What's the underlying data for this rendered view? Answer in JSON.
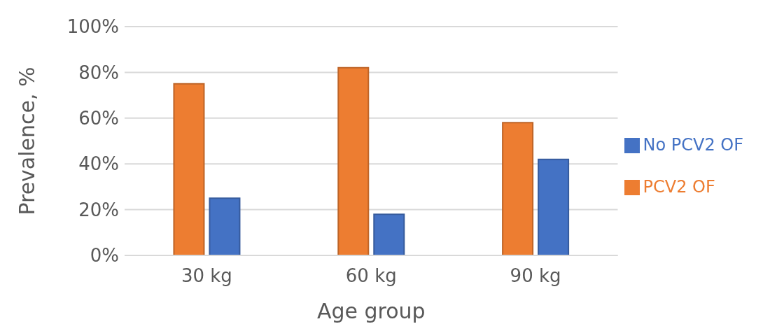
{
  "chart_data": {
    "type": "bar",
    "xlabel": "Age group",
    "ylabel": "Prevalence, %",
    "categories": [
      "30 kg",
      "60 kg",
      "90 kg"
    ],
    "series": [
      {
        "name": "PCV2 OF",
        "color": "#ed7d31",
        "values": [
          75,
          82,
          58
        ]
      },
      {
        "name": "No PCV2 OF",
        "color": "#4472c4",
        "values": [
          25,
          18,
          42
        ]
      }
    ],
    "ylim": [
      0,
      100
    ],
    "yticks": [
      {
        "value": 0,
        "label": "0%"
      },
      {
        "value": 20,
        "label": "20%"
      },
      {
        "value": 40,
        "label": "40%"
      },
      {
        "value": 60,
        "label": "60%"
      },
      {
        "value": 80,
        "label": "80%"
      },
      {
        "value": 100,
        "label": "100%"
      }
    ],
    "grid": "y",
    "legend": "right"
  }
}
